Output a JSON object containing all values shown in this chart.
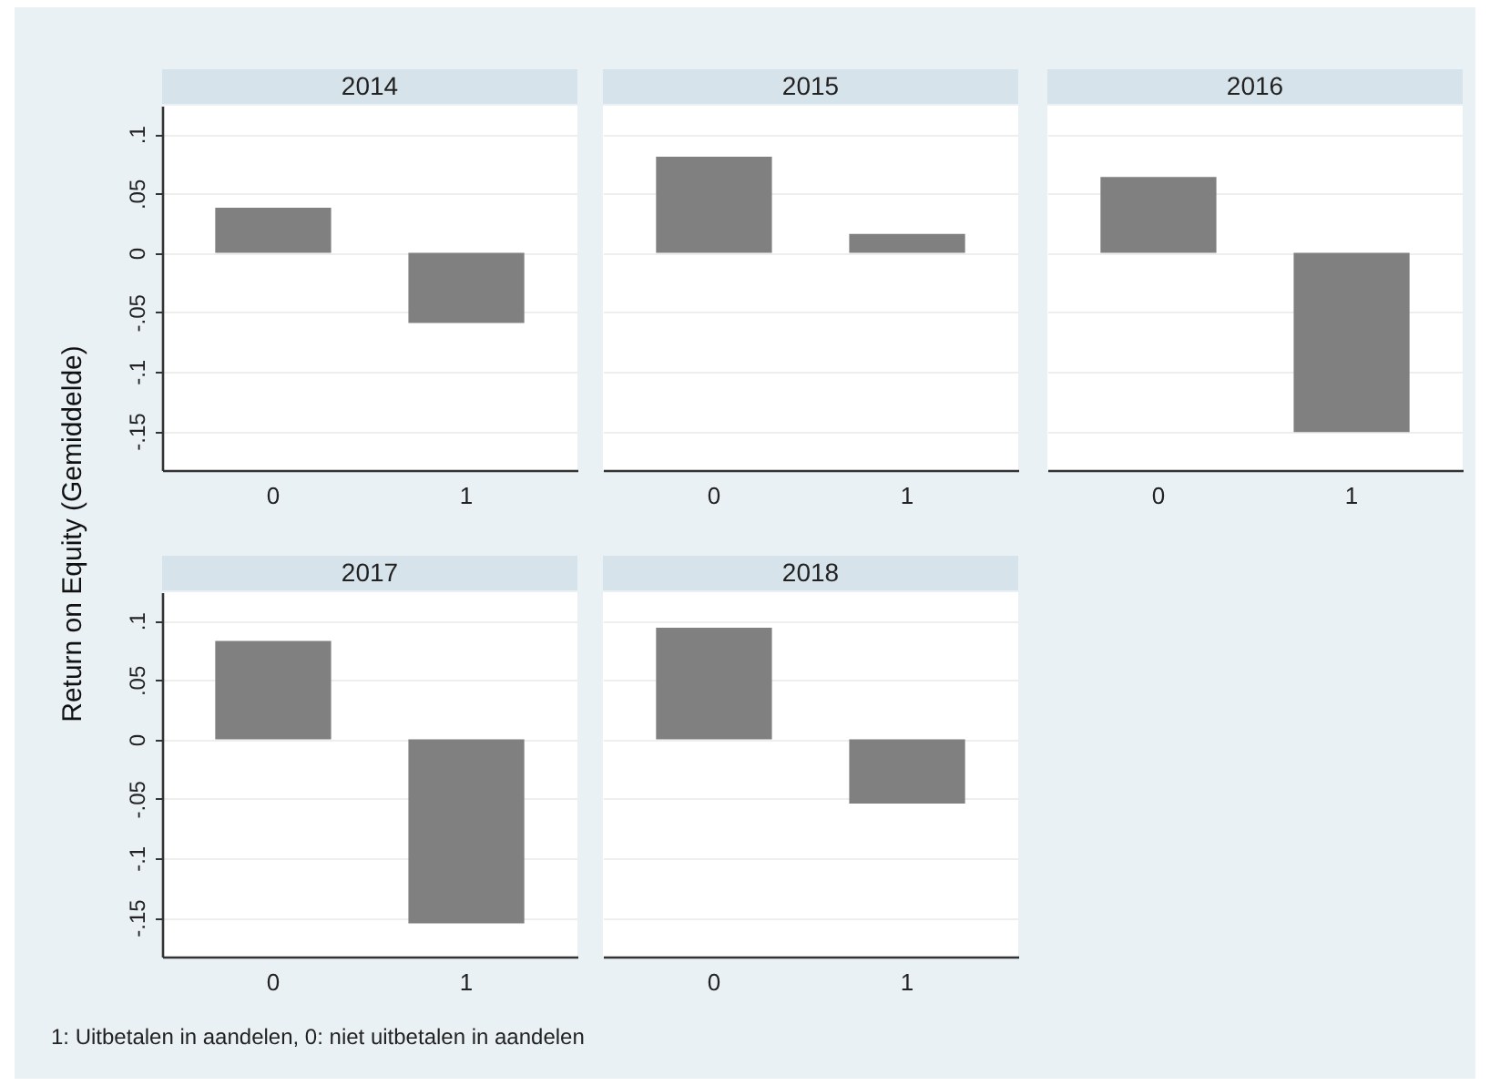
{
  "chart_data": [
    {
      "type": "bar",
      "title": "2014",
      "ylabel": "Return on Equity (Gemiddelde)",
      "annotations": [
        "1: Uitbetalen in aandelen, 0: niet uitbetalen in aandelen"
      ],
      "categories": [
        "0",
        "1"
      ],
      "values": [
        0.038,
        -0.059
      ],
      "color": "#808080",
      "ylim": [
        -0.183,
        0.124
      ],
      "yticks": [
        {
          "value": -0.15,
          "label": "-.15"
        },
        {
          "value": -0.1,
          "label": "-.1"
        },
        {
          "value": -0.05,
          "label": "-.05"
        },
        0,
        {
          "value": 0.05,
          "label": ".05"
        },
        {
          "value": 0.1,
          "label": ".1"
        }
      ],
      "grid": "y"
    },
    {
      "type": "bar",
      "title": "2015",
      "categories": [
        "0",
        "1"
      ],
      "values": [
        0.081,
        0.016
      ],
      "color": "#808080",
      "ylim": [
        -0.183,
        0.124
      ],
      "yticks": [
        -0.15,
        -0.1,
        -0.05,
        0,
        0.05,
        0.1
      ],
      "grid": "y",
      "tick_labels": "x"
    },
    {
      "type": "bar",
      "title": "2016",
      "categories": [
        "0",
        "1"
      ],
      "values": [
        0.064,
        -0.151
      ],
      "color": "#808080",
      "ylim": [
        -0.183,
        0.124
      ],
      "yticks": [
        -0.15,
        -0.1,
        -0.05,
        0,
        0.05,
        0.1
      ],
      "grid": "y",
      "tick_labels": "x"
    },
    {
      "type": "bar",
      "title": "2017",
      "categories": [
        "0",
        "1"
      ],
      "values": [
        0.083,
        -0.155
      ],
      "color": "#808080",
      "ylim": [
        -0.183,
        0.124
      ],
      "yticks": [
        {
          "value": -0.15,
          "label": "-.15"
        },
        {
          "value": -0.1,
          "label": "-.1"
        },
        {
          "value": -0.05,
          "label": "-.05"
        },
        0,
        {
          "value": 0.05,
          "label": ".05"
        },
        {
          "value": 0.1,
          "label": ".1"
        }
      ],
      "grid": "y"
    },
    {
      "type": "bar",
      "title": "2018",
      "categories": [
        "0",
        "1"
      ],
      "values": [
        0.094,
        -0.054
      ],
      "color": "#808080",
      "ylim": [
        -0.183,
        0.124
      ],
      "yticks": [
        -0.15,
        -0.1,
        -0.05,
        0,
        0.05,
        0.1
      ],
      "grid": "y",
      "tick_labels": "x"
    }
  ]
}
